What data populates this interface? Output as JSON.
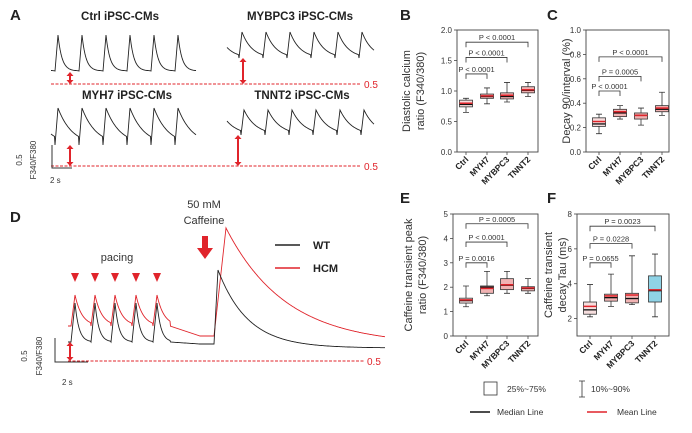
{
  "panel_labels": {
    "A": "A",
    "B": "B",
    "C": "C",
    "D": "D",
    "E": "E",
    "F": "F"
  },
  "panel_a": {
    "titles": {
      "ctrl": "Ctrl iPSC-CMs",
      "mybpc3": "MYBPC3 iPSC-CMs",
      "myh7": "MYH7 iPSC-CMs",
      "tnnt2": "TNNT2 iPSC-CMs"
    },
    "reference_label": "0.5",
    "scale_y": "0.5",
    "scale_y_unit": "F340/F380",
    "scale_x": "2 s"
  },
  "panel_d": {
    "pacing_label": "pacing",
    "caffeine_line1": "50 mM",
    "caffeine_line2": "Caffeine",
    "legend": [
      {
        "label": "WT",
        "color": "#222222"
      },
      {
        "label": "HCM",
        "color": "#e0242b"
      }
    ],
    "reference_label": "0.5",
    "scale_y": "0.5",
    "scale_y_unit": "F340/F380",
    "scale_x": "2 s"
  },
  "colors": {
    "mean": "#e0242b",
    "median": "#111111",
    "accent": "#e0242b",
    "box_ctrl": "#f6dede",
    "box_mut": "#f1b3b3",
    "box_blue": "#8fd3e6"
  },
  "chart_data": [
    {
      "id": "B",
      "type": "box",
      "categories": [
        "Ctrl",
        "MYH7",
        "MYBPC3",
        "TNNT2"
      ],
      "ylabel_lines": [
        "Diastolic calcium",
        "ratio (F340/380)"
      ],
      "ylim": [
        0,
        2
      ],
      "yticks": [
        "0.0",
        "0.5",
        "1.0",
        "1.5",
        "2.0"
      ],
      "boxes": [
        {
          "p10": 0.65,
          "q1": 0.74,
          "median": 0.78,
          "mean": 0.8,
          "q3": 0.85,
          "p90": 0.88
        },
        {
          "p10": 0.79,
          "q1": 0.88,
          "median": 0.91,
          "mean": 0.92,
          "q3": 0.95,
          "p90": 1.05
        },
        {
          "p10": 0.82,
          "q1": 0.87,
          "median": 0.91,
          "mean": 0.93,
          "q3": 0.97,
          "p90": 1.14
        },
        {
          "p10": 0.91,
          "q1": 0.97,
          "median": 1.01,
          "mean": 1.02,
          "q3": 1.07,
          "p90": 1.14
        }
      ],
      "comparisons": [
        {
          "to": 1,
          "y": 1.28,
          "label": "P < 0.0001"
        },
        {
          "to": 2,
          "y": 1.55,
          "label": "P < 0.0001"
        },
        {
          "to": 3,
          "y": 1.8,
          "label": "P < 0.0001"
        }
      ]
    },
    {
      "id": "C",
      "type": "box",
      "categories": [
        "Ctrl",
        "MYH7",
        "MYBPC3",
        "TNNT2"
      ],
      "ylabel_lines": [
        "Decay 90/interval (%)"
      ],
      "ylim": [
        0,
        1
      ],
      "yticks": [
        "0.0",
        "0.2",
        "0.4",
        "0.6",
        "0.8",
        "1.0"
      ],
      "boxes": [
        {
          "p10": 0.15,
          "q1": 0.21,
          "median": 0.23,
          "mean": 0.25,
          "q3": 0.28,
          "p90": 0.31
        },
        {
          "p10": 0.27,
          "q1": 0.29,
          "median": 0.32,
          "mean": 0.33,
          "q3": 0.35,
          "p90": 0.38
        },
        {
          "p10": 0.22,
          "q1": 0.27,
          "median": 0.3,
          "mean": 0.3,
          "q3": 0.32,
          "p90": 0.36
        },
        {
          "p10": 0.3,
          "q1": 0.33,
          "median": 0.35,
          "mean": 0.36,
          "q3": 0.38,
          "p90": 0.49
        }
      ],
      "comparisons": [
        {
          "to": 1,
          "y": 0.5,
          "label": "P < 0.0001"
        },
        {
          "to": 2,
          "y": 0.62,
          "label": "P = 0.0005"
        },
        {
          "to": 3,
          "y": 0.78,
          "label": "P < 0.0001"
        }
      ]
    },
    {
      "id": "E",
      "type": "box",
      "categories": [
        "Ctrl",
        "MYH7",
        "MYBPC3",
        "TNNT2"
      ],
      "ylabel_lines": [
        "Caffeine transient peak",
        "ratio (F340/380)"
      ],
      "ylim": [
        0,
        5
      ],
      "yticks": [
        "0",
        "1",
        "2",
        "3",
        "4",
        "5"
      ],
      "boxes": [
        {
          "p10": 1.2,
          "q1": 1.35,
          "median": 1.45,
          "mean": 1.48,
          "q3": 1.55,
          "p90": 2.05
        },
        {
          "p10": 1.65,
          "q1": 1.75,
          "median": 2.0,
          "mean": 1.95,
          "q3": 2.05,
          "p90": 2.65
        },
        {
          "p10": 1.75,
          "q1": 1.9,
          "median": 2.08,
          "mean": 2.1,
          "q3": 2.35,
          "p90": 2.65
        },
        {
          "p10": 1.75,
          "q1": 1.85,
          "median": 1.95,
          "mean": 1.97,
          "q3": 2.02,
          "p90": 2.35
        }
      ],
      "comparisons": [
        {
          "to": 1,
          "y": 3.0,
          "label": "P = 0.0016"
        },
        {
          "to": 2,
          "y": 3.85,
          "label": "P < 0.0001"
        },
        {
          "to": 3,
          "y": 4.6,
          "label": "P = 0.0005"
        }
      ]
    },
    {
      "id": "F",
      "type": "box",
      "categories": [
        "Ctrl",
        "MYH7",
        "MYBPC3",
        "TNNT2"
      ],
      "ylabel_lines": [
        "Caffeine transient",
        "decay Tau (ms)"
      ],
      "ylim": [
        1,
        8
      ],
      "yticks": [
        "2",
        "4",
        "6",
        "8"
      ],
      "boxes": [
        {
          "p10": 2.1,
          "q1": 2.25,
          "median": 2.5,
          "mean": 2.7,
          "q3": 2.95,
          "p90": 3.95
        },
        {
          "p10": 2.7,
          "q1": 3.0,
          "median": 3.2,
          "mean": 3.3,
          "q3": 3.4,
          "p90": 4.55
        },
        {
          "p10": 2.8,
          "q1": 2.9,
          "median": 3.15,
          "mean": 3.35,
          "q3": 3.45,
          "p90": 5.6
        },
        {
          "p10": 2.1,
          "q1": 2.95,
          "median": 3.6,
          "mean": 3.65,
          "q3": 4.45,
          "p90": 5.7
        }
      ],
      "comparisons": [
        {
          "to": 1,
          "y": 5.2,
          "label": "P = 0.0655"
        },
        {
          "to": 2,
          "y": 6.3,
          "label": "P = 0.0228"
        },
        {
          "to": 3,
          "y": 7.3,
          "label": "P = 0.0023"
        }
      ]
    }
  ],
  "legend": {
    "box": "25%~75%",
    "whisker": "10%~90%",
    "median": "Median Line",
    "mean": "Mean Line"
  }
}
